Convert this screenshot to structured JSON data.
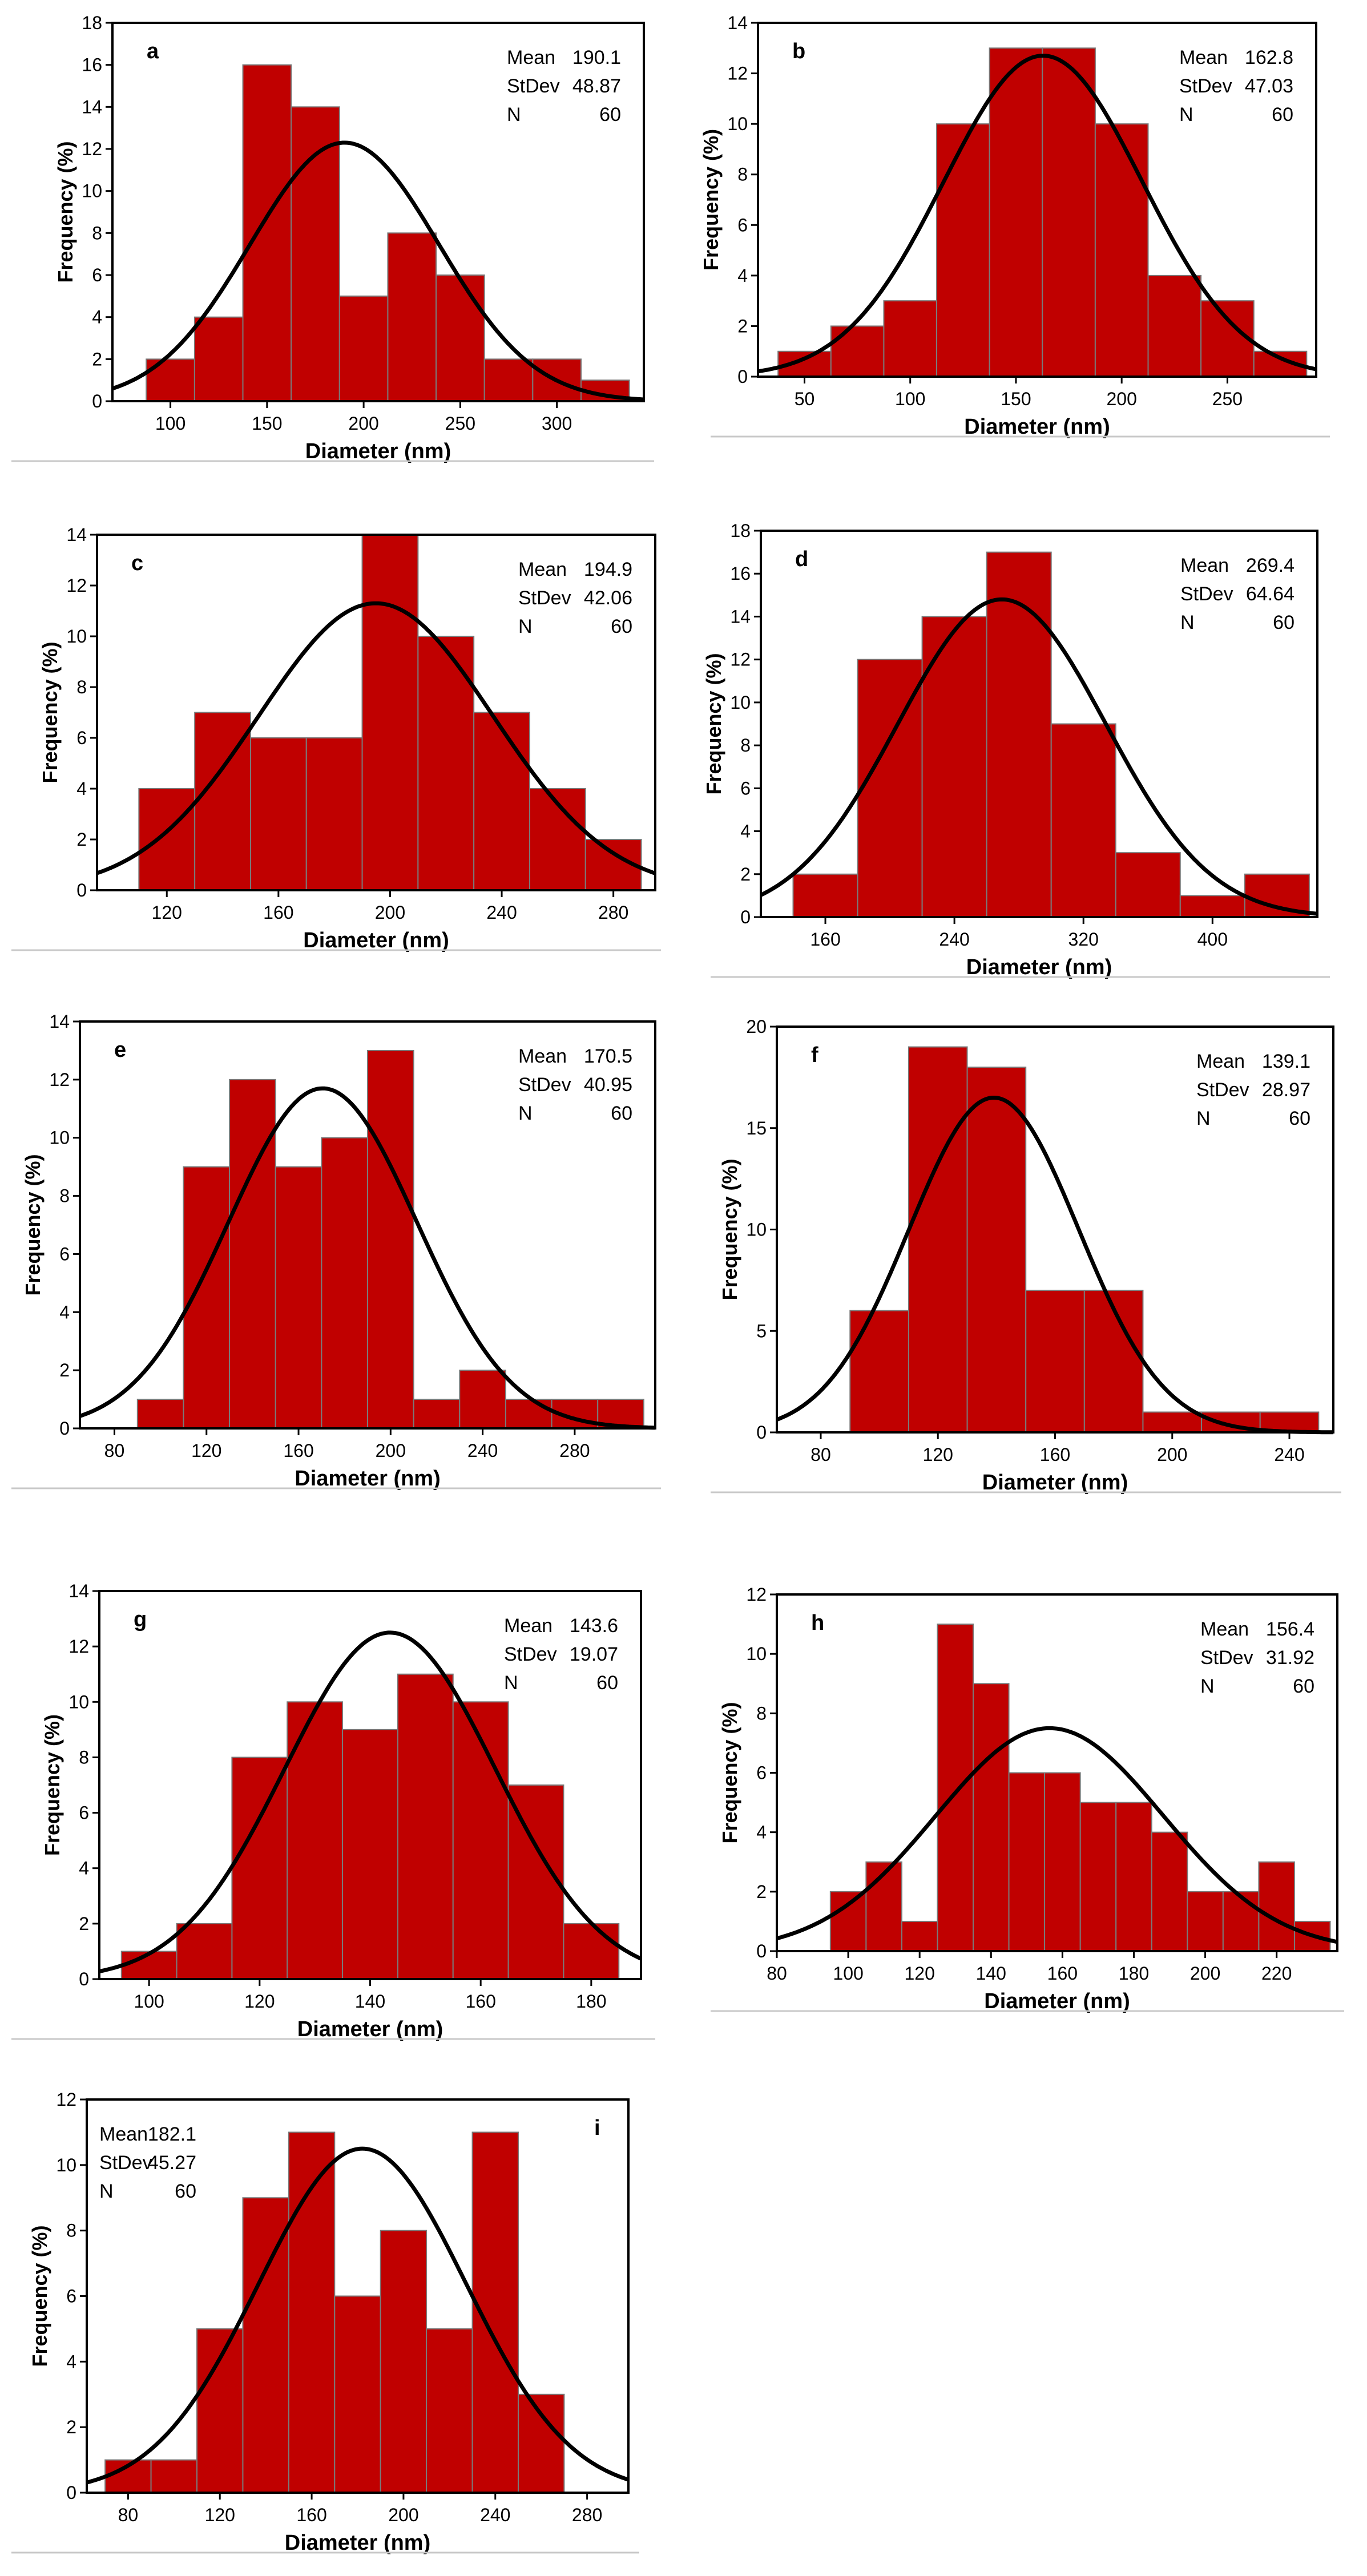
{
  "colors": {
    "bar": "#c00000",
    "bar_edge": "#7a7a7a",
    "curve": "#000000",
    "frame": "#000000",
    "separator": "#c8c8c8"
  },
  "chart_data": [
    {
      "type": "bar",
      "id": "a",
      "panel_label": "a",
      "xlabel": "Diameter (nm)",
      "ylabel": "Frequency (%)",
      "xlim": [
        70,
        345
      ],
      "ylim": [
        0,
        18
      ],
      "xticks": [
        100,
        150,
        200,
        250,
        300
      ],
      "yticks": [
        0,
        2,
        4,
        6,
        8,
        10,
        12,
        14,
        16,
        18
      ],
      "bin_start": 87.5,
      "bin_width": 25,
      "values": [
        2,
        4,
        16,
        14,
        5,
        8,
        6,
        2,
        2,
        1
      ],
      "stats": {
        "mean_label": "Mean",
        "mean": "190.1",
        "stdev_label": "StDev",
        "stdev": "48.87",
        "n_label": "N",
        "n": "60"
      },
      "stats_pos": "top-right",
      "curve": {
        "type": "normal",
        "mean": 190.1,
        "sd": 48.87,
        "peak": 12.3
      }
    },
    {
      "type": "bar",
      "id": "b",
      "panel_label": "b",
      "xlabel": "Diameter (nm)",
      "ylabel": "Frequency (%)",
      "xlim": [
        28,
        292
      ],
      "ylim": [
        0,
        14
      ],
      "xticks": [
        50,
        100,
        150,
        200,
        250
      ],
      "yticks": [
        0,
        2,
        4,
        6,
        8,
        10,
        12,
        14
      ],
      "bin_start": 37.5,
      "bin_width": 25,
      "values": [
        1,
        2,
        3,
        10,
        13,
        13,
        10,
        4,
        3,
        1
      ],
      "stats": {
        "mean_label": "Mean",
        "mean": "162.8",
        "stdev_label": "StDev",
        "stdev": "47.03",
        "n_label": "N",
        "n": "60"
      },
      "stats_pos": "top-right",
      "curve": {
        "type": "normal",
        "mean": 162.8,
        "sd": 47.03,
        "peak": 12.7
      }
    },
    {
      "type": "bar",
      "id": "c",
      "panel_label": "c",
      "xlabel": "Diameter (nm)",
      "ylabel": "Frequency (%)",
      "xlim": [
        95,
        295
      ],
      "ylim": [
        0,
        14
      ],
      "xticks": [
        120,
        160,
        200,
        240,
        280
      ],
      "yticks": [
        0,
        2,
        4,
        6,
        8,
        10,
        12,
        14
      ],
      "bin_start": 110,
      "bin_width": 20,
      "values": [
        4,
        7,
        6,
        6,
        14,
        10,
        7,
        4,
        2
      ],
      "stats": {
        "mean_label": "Mean",
        "mean": "194.9",
        "stdev_label": "StDev",
        "stdev": "42.06",
        "n_label": "N",
        "n": "60"
      },
      "stats_pos": "top-right",
      "curve": {
        "type": "normal",
        "mean": 194.9,
        "sd": 42.06,
        "peak": 11.3
      }
    },
    {
      "type": "bar",
      "id": "d",
      "panel_label": "d",
      "xlabel": "Diameter (nm)",
      "ylabel": "Frequency (%)",
      "xlim": [
        120,
        465
      ],
      "ylim": [
        0,
        18
      ],
      "xticks": [
        160,
        240,
        320,
        400
      ],
      "yticks": [
        0,
        2,
        4,
        6,
        8,
        10,
        12,
        14,
        16,
        18
      ],
      "bin_start": 140,
      "bin_width": 40,
      "values": [
        2,
        12,
        14,
        17,
        9,
        3,
        1,
        2
      ],
      "stats": {
        "mean_label": "Mean",
        "mean": "269.4",
        "stdev_label": "StDev",
        "stdev": "64.64",
        "n_label": "N",
        "n": "60"
      },
      "stats_pos": "top-right",
      "curve": {
        "type": "normal",
        "mean": 269.4,
        "sd": 64.64,
        "peak": 14.8
      }
    },
    {
      "type": "bar",
      "id": "e",
      "panel_label": "e",
      "xlabel": "Diameter (nm)",
      "ylabel": "Frequency (%)",
      "xlim": [
        65,
        315
      ],
      "ylim": [
        0,
        14
      ],
      "xticks": [
        80,
        120,
        160,
        200,
        240,
        280
      ],
      "yticks": [
        0,
        2,
        4,
        6,
        8,
        10,
        12,
        14
      ],
      "bin_start": 90,
      "bin_width": 20,
      "values": [
        1,
        9,
        12,
        9,
        10,
        13,
        1,
        2,
        1,
        1,
        1
      ],
      "stats": {
        "mean_label": "Mean",
        "mean": "170.5",
        "stdev_label": "StDev",
        "stdev": "40.95",
        "n_label": "N",
        "n": "60"
      },
      "stats_pos": "top-right",
      "curve": {
        "type": "normal",
        "mean": 170.5,
        "sd": 40.95,
        "peak": 11.7
      }
    },
    {
      "type": "bar",
      "id": "f",
      "panel_label": "f",
      "xlabel": "Diameter (nm)",
      "ylabel": "Frequency (%)",
      "xlim": [
        65,
        255
      ],
      "ylim": [
        0,
        20
      ],
      "xticks": [
        80,
        120,
        160,
        200,
        240
      ],
      "yticks": [
        0,
        5,
        10,
        15,
        20
      ],
      "bin_start": 90,
      "bin_width": 20,
      "values": [
        6,
        19,
        18,
        7,
        7,
        1,
        1,
        1
      ],
      "stats": {
        "mean_label": "Mean",
        "mean": "139.1",
        "stdev_label": "StDev",
        "stdev": "28.97",
        "n_label": "N",
        "n": "60"
      },
      "stats_pos": "top-right",
      "curve": {
        "type": "normal",
        "mean": 139.1,
        "sd": 28.97,
        "peak": 16.5
      }
    },
    {
      "type": "bar",
      "id": "g",
      "panel_label": "g",
      "xlabel": "Diameter (nm)",
      "ylabel": "Frequency (%)",
      "xlim": [
        91,
        189
      ],
      "ylim": [
        0,
        14
      ],
      "xticks": [
        100,
        120,
        140,
        160,
        180
      ],
      "yticks": [
        0,
        2,
        4,
        6,
        8,
        10,
        12,
        14
      ],
      "bin_start": 95,
      "bin_width": 10,
      "values": [
        1,
        2,
        8,
        10,
        9,
        11,
        10,
        7,
        2
      ],
      "stats": {
        "mean_label": "Mean",
        "mean": "143.6",
        "stdev_label": "StDev",
        "stdev": "19.07",
        "n_label": "N",
        "n": "60"
      },
      "stats_pos": "top-right",
      "curve": {
        "type": "normal",
        "mean": 143.6,
        "sd": 19.07,
        "peak": 12.5
      }
    },
    {
      "type": "bar",
      "id": "h",
      "panel_label": "h",
      "xlabel": "Diameter (nm)",
      "ylabel": "Frequency (%)",
      "xlim": [
        80,
        237
      ],
      "ylim": [
        0,
        12
      ],
      "xticks": [
        80,
        100,
        120,
        140,
        160,
        180,
        200,
        220
      ],
      "yticks": [
        0,
        2,
        4,
        6,
        8,
        10,
        12
      ],
      "bin_start": 95,
      "bin_width": 10,
      "values": [
        2,
        3,
        1,
        11,
        9,
        6,
        6,
        5,
        5,
        4,
        2,
        2,
        3,
        1
      ],
      "stats": {
        "mean_label": "Mean",
        "mean": "156.4",
        "stdev_label": "StDev",
        "stdev": "31.92",
        "n_label": "N",
        "n": "60"
      },
      "stats_pos": "top-right",
      "curve": {
        "type": "normal",
        "mean": 156.4,
        "sd": 31.92,
        "peak": 7.5
      }
    },
    {
      "type": "bar",
      "id": "i",
      "panel_label": "i",
      "xlabel": "Diameter (nm)",
      "ylabel": "Frequency (%)",
      "xlim": [
        62,
        298
      ],
      "ylim": [
        0,
        12
      ],
      "xticks": [
        80,
        120,
        160,
        200,
        240,
        280
      ],
      "yticks": [
        0,
        2,
        4,
        6,
        8,
        10,
        12
      ],
      "bin_start": 70,
      "bin_width": 20,
      "values": [
        1,
        1,
        5,
        9,
        11,
        6,
        8,
        5,
        11,
        3
      ],
      "stats": {
        "mean_label": "Mean",
        "mean": "182.1",
        "stdev_label": "StDev",
        "stdev": "45.27",
        "n_label": "N",
        "n": "60"
      },
      "stats_pos": "top-left",
      "curve": {
        "type": "normal",
        "mean": 182.1,
        "sd": 45.27,
        "peak": 10.5
      }
    }
  ]
}
